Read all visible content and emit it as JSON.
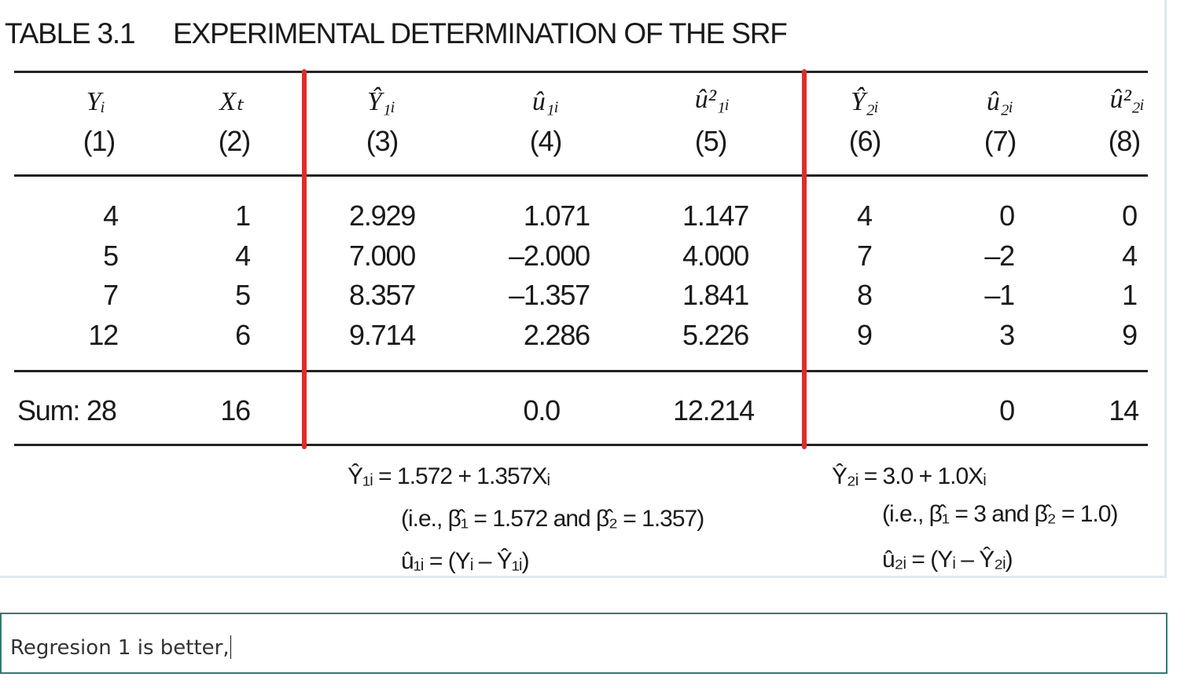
{
  "table": {
    "number": "TABLE 3.1",
    "title": "EXPERIMENTAL DETERMINATION OF THE SRF",
    "headers": [
      {
        "symbol": "Yᵢ",
        "index": "(1)"
      },
      {
        "symbol": "Xₜ",
        "index": "(2)"
      },
      {
        "symbol": "Ŷ₁ᵢ",
        "index": "(3)"
      },
      {
        "symbol": "û₁ᵢ",
        "index": "(4)"
      },
      {
        "symbol": "û²₁ᵢ",
        "index": "(5)"
      },
      {
        "symbol": "Ŷ₂ᵢ",
        "index": "(6)"
      },
      {
        "symbol": "û₂ᵢ",
        "index": "(7)"
      },
      {
        "symbol": "û²₂ᵢ",
        "index": "(8)"
      }
    ],
    "rows": [
      [
        "4",
        "1",
        "2.929",
        "1.071",
        "1.147",
        "4",
        "0",
        "0"
      ],
      [
        "5",
        "4",
        "7.000",
        "–2.000",
        "4.000",
        "7",
        "–2",
        "4"
      ],
      [
        "7",
        "5",
        "8.357",
        "–1.357",
        "1.841",
        "8",
        "–1",
        "1"
      ],
      [
        "12",
        "6",
        "9.714",
        "2.286",
        "5.226",
        "9",
        "3",
        "9"
      ]
    ],
    "sum_row": [
      "Sum: 28",
      "16",
      "",
      "0.0",
      "12.214",
      "",
      "0",
      "14"
    ],
    "formulas": {
      "regression1": {
        "line1": "Ŷ₁ᵢ = 1.572 + 1.357Xᵢ",
        "line2": "(i.e., β̂₁ = 1.572 and β̂₂ = 1.357)",
        "line3": "û₁ᵢ = (Yᵢ – Ŷ₁ᵢ)"
      },
      "regression2": {
        "line1": "Ŷ₂ᵢ = 3.0 + 1.0Xᵢ",
        "line2": "(i.e., β̂₁ = 3 and β̂₂ = 1.0)",
        "line3": "û₂ᵢ = (Yᵢ – Ŷ₂ᵢ)"
      }
    },
    "accent_color": "#e02b2b"
  },
  "answer": {
    "text": "Regresion 1 is better,"
  },
  "colors": {
    "answer_border": "#2e7d6e",
    "frame_border": "#dde9ee"
  }
}
